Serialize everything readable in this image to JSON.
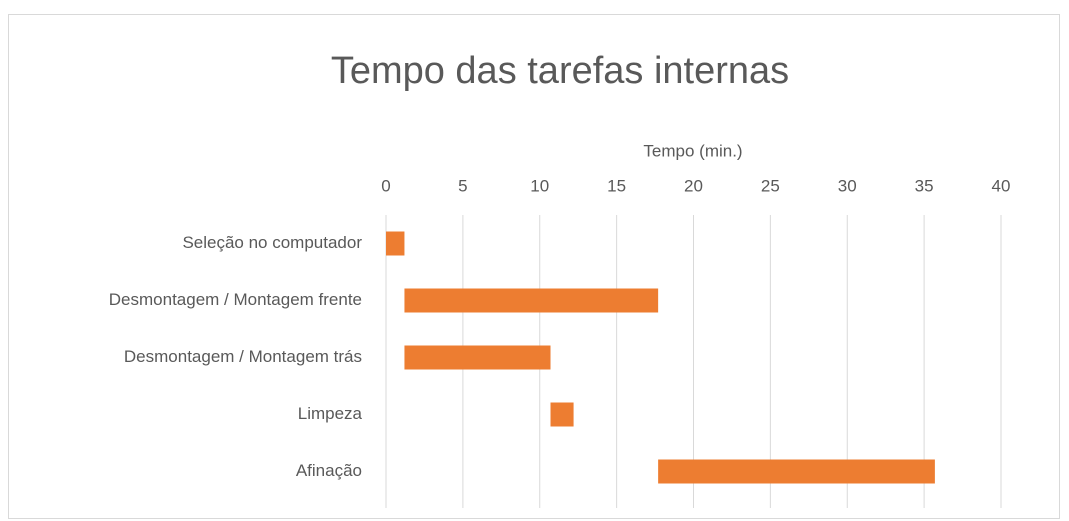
{
  "chart_data": {
    "type": "gantt",
    "title": "Tempo das tarefas internas",
    "x_label": "Tempo (min.)",
    "categories": [
      "Seleção no computador",
      "Desmontagem / Montagem frente",
      "Desmontagem / Montagem trás",
      "Limpeza",
      "Afinação"
    ],
    "start": [
      0,
      1.2,
      1.2,
      10.7,
      17.7
    ],
    "values": [
      1.2,
      16.5,
      9.5,
      1.5,
      18
    ],
    "color": "#ed7d31",
    "xlim": [
      0,
      40
    ],
    "xticks": [
      0,
      5,
      10,
      15,
      20,
      25,
      30,
      35,
      40
    ],
    "grid": true
  }
}
